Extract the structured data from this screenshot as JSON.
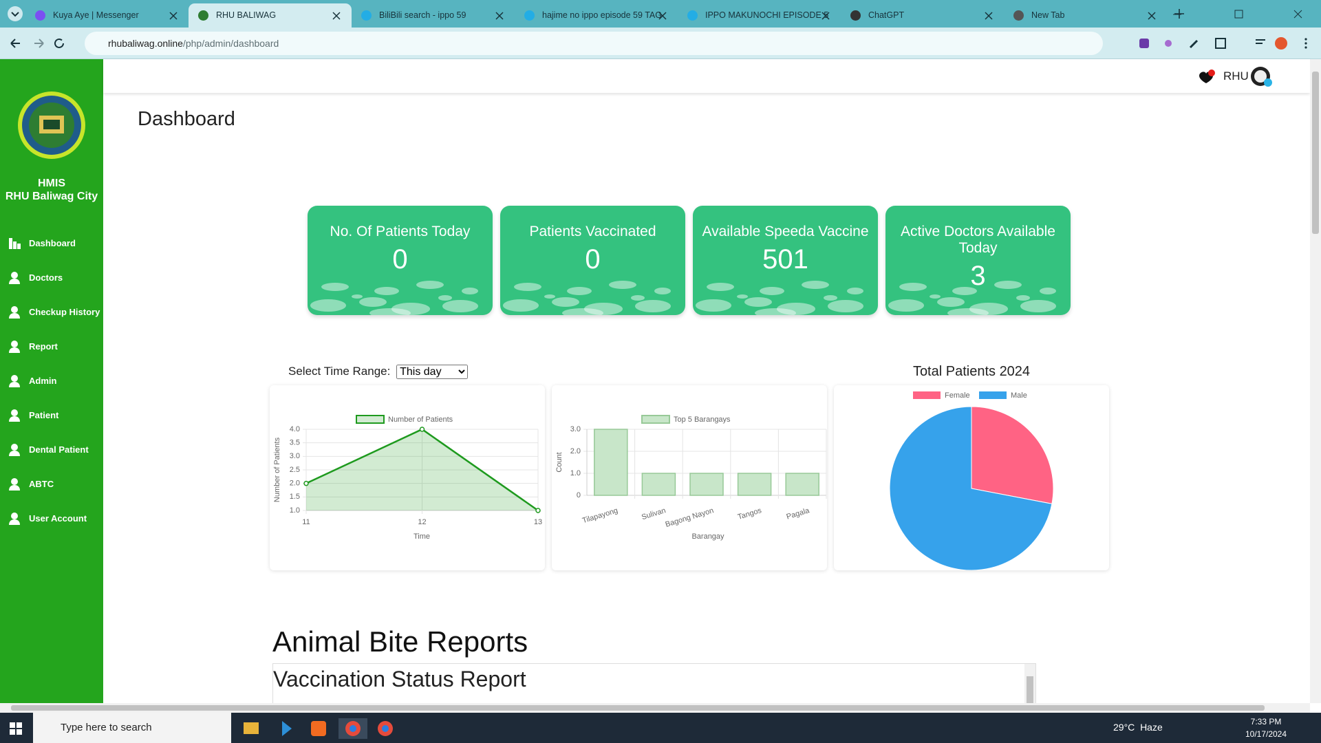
{
  "browser": {
    "tabs": [
      "Kuya Aye | Messenger",
      "RHU BALIWAG",
      "BiliBili search - ippo 59",
      "hajime no ippo episode 59 TAG",
      "IPPO MAKUNOCHI EPISODE 5",
      "ChatGPT",
      "New Tab"
    ],
    "url_host": "rhubaliwag.online",
    "url_path": "/php/admin/dashboard"
  },
  "sidebar": {
    "title": "HMIS",
    "subtitle": "RHU Baliwag City",
    "menu": [
      "Dashboard",
      "Doctors",
      "Checkup History",
      "Report",
      "Admin",
      "Patient",
      "Dental Patient",
      "ABTC",
      "User Account"
    ]
  },
  "header": {
    "user": "RHU"
  },
  "page": {
    "title": "Dashboard",
    "cards": [
      {
        "label": "No. Of Patients Today",
        "value": 0
      },
      {
        "label": "Patients Vaccinated",
        "value": 0
      },
      {
        "label": "Available Speeda Vaccine",
        "value": 501
      },
      {
        "label": "Active Doctors Available Today",
        "value": 3
      }
    ],
    "time_range_label": "Select Time Range:",
    "time_range_option": "This day",
    "section_title": "Animal Bite Reports",
    "report_title": "Vaccination Status Report"
  },
  "chart_data": [
    {
      "type": "line",
      "x_label": "Time",
      "y_label": "Number of Patients",
      "categories": [
        "11",
        "12",
        "13"
      ],
      "series": [
        {
          "name": "Number of Patients",
          "color": "#1e9a1e",
          "values": [
            2,
            4,
            1
          ]
        }
      ],
      "ylim": [
        1,
        4
      ],
      "yticks": [
        {
          "value": 1,
          "label": "1.0"
        },
        {
          "value": 1.5,
          "label": "1.5"
        },
        {
          "value": 2,
          "label": "2.0"
        },
        {
          "value": 2.5,
          "label": "2.5"
        },
        {
          "value": 3,
          "label": "3.0"
        },
        {
          "value": 3.5,
          "label": "3.5"
        },
        {
          "value": 4,
          "label": "4.0"
        }
      ],
      "grid": true
    },
    {
      "type": "bar",
      "x_label": "Barangay",
      "y_label": "Count",
      "categories": [
        "Tilapayong",
        "Sulivan",
        "Bagong Nayon",
        "Tangos",
        "Pagala"
      ],
      "series": [
        {
          "name": "Top 5 Barangays",
          "color": "#c8e6c9",
          "values": [
            3,
            1,
            1,
            1,
            1
          ]
        }
      ],
      "ylim": [
        0,
        3
      ],
      "yticks": [
        0,
        {
          "value": 1,
          "label": "1.0"
        },
        {
          "value": 2,
          "label": "2.0"
        },
        {
          "value": 3,
          "label": "3.0"
        }
      ],
      "grid": true
    },
    {
      "type": "pie",
      "title": "Total Patients 2024",
      "categories": [
        "Female",
        "Male"
      ],
      "values": [
        28,
        72
      ],
      "colors": [
        "#ff6384",
        "#36a2eb"
      ]
    }
  ],
  "taskbar": {
    "search": "Type here to search",
    "temperature": "29°C",
    "weather": "Haze",
    "time": "7:33 PM",
    "date": "10/17/2024"
  }
}
